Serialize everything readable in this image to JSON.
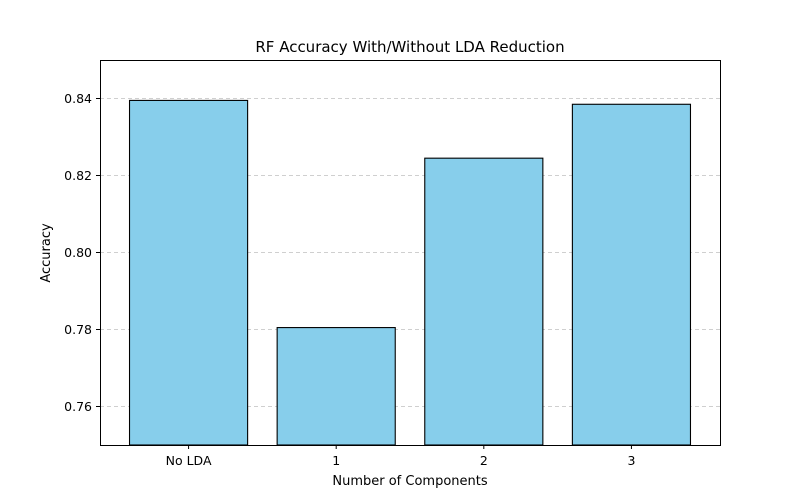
{
  "chart_data": {
    "type": "bar",
    "title": "RF Accuracy With/Without LDA Reduction",
    "xlabel": "Number of Components",
    "ylabel": "Accuracy",
    "categories": [
      "No LDA",
      "1",
      "2",
      "3"
    ],
    "values": [
      0.8395,
      0.7805,
      0.8245,
      0.8385
    ],
    "ylim": [
      0.75,
      0.85
    ],
    "yticks": [
      0.76,
      0.78,
      0.8,
      0.82,
      0.84
    ],
    "ytick_labels": [
      "0.76",
      "0.78",
      "0.80",
      "0.82",
      "0.84"
    ],
    "bar_color": "#87ceeb",
    "edge_color": "#000000",
    "grid": "horizontal dashed",
    "legend": "none"
  }
}
